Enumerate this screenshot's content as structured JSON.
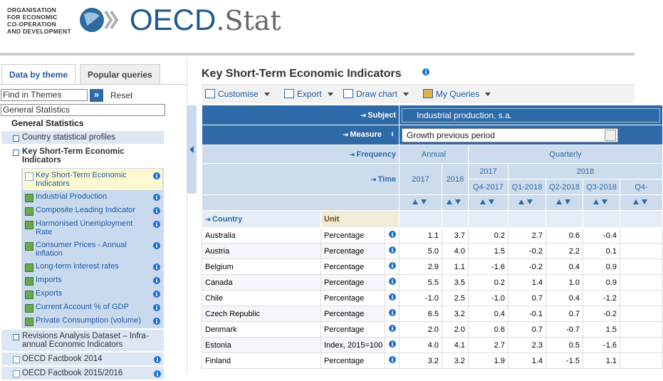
{
  "header": {
    "org": [
      "ORGANISATION",
      "FOR ECONOMIC",
      "CO-OPERATION",
      "AND DEVELOPMENT"
    ],
    "brand": "OECD",
    "brand_suffix": ".Stat"
  },
  "sidebar": {
    "tabs": [
      "Data by theme",
      "Popular queries"
    ],
    "search_placeholder": "Find in Themes",
    "search_button": "»",
    "reset": "Reset",
    "theme_select": "General Statistics",
    "tree": {
      "root": "General Statistics",
      "items": [
        "Country statistical profiles"
      ],
      "open_item": "Key Short-Term Economic Indicators",
      "children": [
        "Key Short-Term Economic Indicators",
        "Industrial Production",
        "Composite Leading Indicator",
        "Harmonised Unemployment Rate",
        "Consumer Prices - Annual inflation",
        "Long-term interest rates",
        "Imports",
        "Exports",
        "Current Account % of GDP",
        "Private Consumption (volume)"
      ],
      "after": [
        "Revisions Analysis Dataset – Infra-annual Economic Indicators"
      ],
      "datasets": [
        "OECD Factbook 2014",
        "OECD Factbook 2015/2016"
      ]
    }
  },
  "main": {
    "title": "Key Short-Term Economic Indicators",
    "toolbar": [
      "Customise",
      "Export",
      "Draw chart",
      "My Queries"
    ]
  },
  "table": {
    "subject_label": "Subject",
    "subject": "Industrial production, s.a.",
    "measure_label": "Measure",
    "measure": "Growth previous period",
    "frequency_label": "Frequency",
    "frequencies": [
      "Annual",
      "Quarterly"
    ],
    "time_label": "Time",
    "years": [
      "2017",
      "2018",
      "2017",
      "2018"
    ],
    "periods": [
      "Q4-2017",
      "Q1-2018",
      "Q2-2018",
      "Q3-2018",
      "Q4-"
    ],
    "country_label": "Country",
    "unit_label": "Unit",
    "rows": [
      [
        "Australia",
        "Percentage",
        "1.1",
        "3.7",
        "0.2",
        "2.7",
        "0.6",
        "-0.4"
      ],
      [
        "Austria",
        "Percentage",
        "5.0",
        "4.0",
        "1.5",
        "-0.2",
        "2.2",
        "0.1"
      ],
      [
        "Belgium",
        "Percentage",
        "2.9",
        "1.1",
        "-1.6",
        "-0.2",
        "0.4",
        "0.9"
      ],
      [
        "Canada",
        "Percentage",
        "5.5",
        "3.5",
        "0.2",
        "1.4",
        "1.0",
        "0.9"
      ],
      [
        "Chile",
        "Percentage",
        "-1.0",
        "2.5",
        "-1.0",
        "0.7",
        "0.4",
        "-1.2"
      ],
      [
        "Czech Republic",
        "Percentage",
        "6.5",
        "3.2",
        "0.4",
        "-0.1",
        "0.7",
        "-0.2"
      ],
      [
        "Denmark",
        "Percentage",
        "2.0",
        "2.0",
        "0.6",
        "0.7",
        "-0.7",
        "1.5"
      ],
      [
        "Estonia",
        "Index, 2015=100",
        "4.0",
        "4.1",
        "2.7",
        "2.3",
        "0.5",
        "-1.6"
      ],
      [
        "Finland",
        "Percentage",
        "3.2",
        "3.2",
        "1.9",
        "1.4",
        "-1.5",
        "1.1"
      ]
    ]
  }
}
